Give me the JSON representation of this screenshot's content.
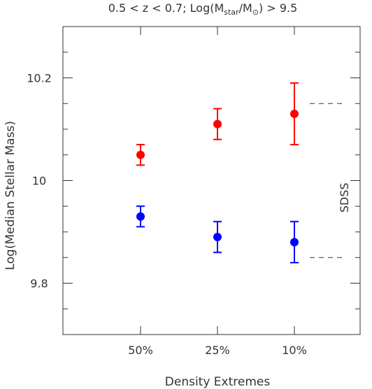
{
  "chart_data": {
    "type": "scatter",
    "title_parts": {
      "main": "0.5 < z < 0.7; Log(M",
      "sub1": "star",
      "mid": "/M",
      "sub2": "⊙",
      "tail": ") > 9.5"
    },
    "xlabel": "Density Extremes",
    "ylabel": "Log(Median Stellar Mass)",
    "categories": [
      "50%",
      "25%",
      "10%"
    ],
    "ylim": [
      9.7,
      10.3
    ],
    "yticks": [
      9.8,
      10,
      10.2
    ],
    "ytick_labels": [
      "9.8",
      "10",
      "10.2"
    ],
    "series": [
      {
        "color": "#ff0000",
        "values": [
          10.05,
          10.11,
          10.13
        ],
        "err_low": [
          10.03,
          10.08,
          10.07
        ],
        "err_high": [
          10.07,
          10.14,
          10.19
        ]
      },
      {
        "color": "#0000ff",
        "values": [
          9.93,
          9.89,
          9.88
        ],
        "err_low": [
          9.91,
          9.86,
          9.84
        ],
        "err_high": [
          9.95,
          9.92,
          9.92
        ]
      }
    ],
    "reference_lines": [
      {
        "value": 10.15,
        "style": "dashed",
        "color": "#333333"
      },
      {
        "value": 9.85,
        "style": "dashed",
        "color": "#333333"
      }
    ],
    "side_label": "SDSS"
  }
}
